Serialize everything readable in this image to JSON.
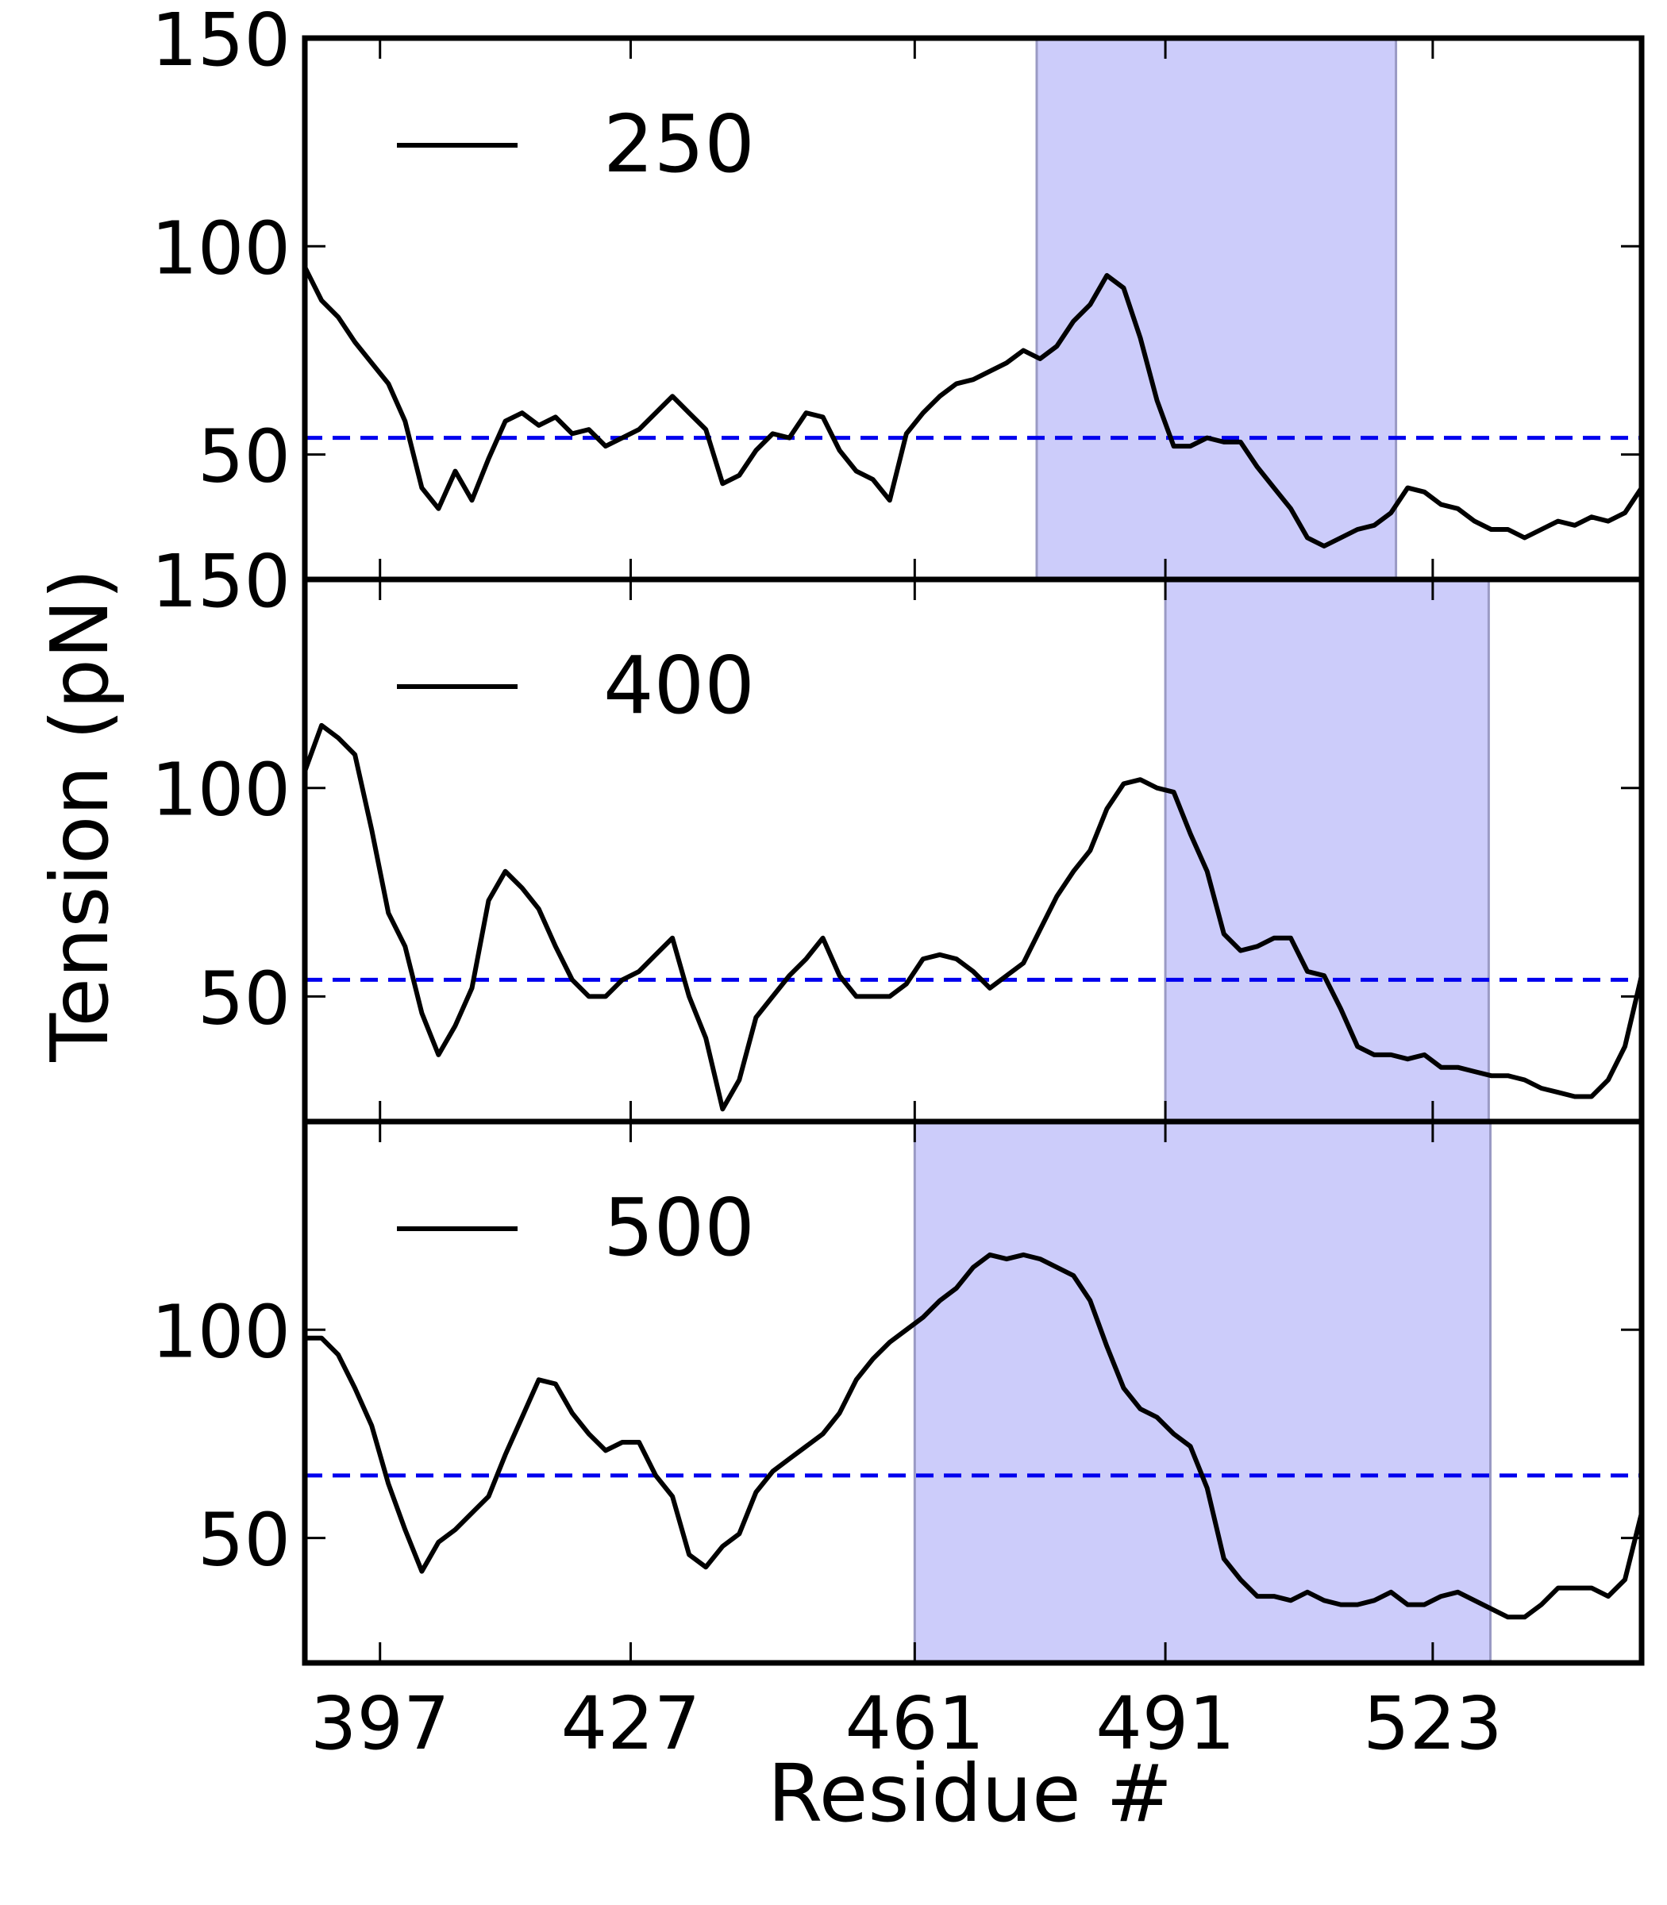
{
  "colors": {
    "line": "#000000",
    "threshold": "#0000ee",
    "shade_fill": "#ccccfa",
    "shade_edge": "#9a9ac4",
    "frame": "#000000"
  },
  "figure": {
    "ylabel": "Tension (pN)",
    "xlabel": "Residue #"
  },
  "chart_data": [
    {
      "type": "line",
      "legend_label": "250",
      "legend_placement": "top-left",
      "xlim": [
        388,
        548
      ],
      "ylim": [
        20,
        150
      ],
      "yticks": [
        50,
        100,
        150
      ],
      "xticks": [
        397,
        427,
        461,
        491,
        523
      ],
      "grid": false,
      "threshold": 54,
      "shaded_x": [
        475.6,
        518.6
      ],
      "series": [
        {
          "x": [
            388,
            390,
            392,
            394,
            396,
            398,
            400,
            402,
            404,
            406,
            408,
            410,
            412,
            414,
            416,
            418,
            420,
            422,
            424,
            426,
            428,
            430,
            432,
            434,
            436,
            438,
            440,
            442,
            444,
            446,
            448,
            450,
            452,
            454,
            456,
            458,
            460,
            462,
            464,
            466,
            468,
            470,
            472,
            474,
            476,
            478,
            480,
            482,
            484,
            486,
            488,
            490,
            492,
            494,
            496,
            498,
            500,
            502,
            504,
            506,
            508,
            510,
            512,
            514,
            516,
            518,
            520,
            522,
            524,
            526,
            528,
            530,
            532,
            534,
            536,
            538,
            540,
            542,
            544,
            546,
            548
          ],
          "y": [
            95,
            87,
            83,
            77,
            72,
            67,
            58,
            42,
            37,
            46,
            39,
            49,
            58,
            60,
            57,
            59,
            55,
            56,
            52,
            54,
            56,
            60,
            64,
            60,
            56,
            43,
            45,
            51,
            55,
            54,
            60,
            59,
            51,
            46,
            44,
            39,
            55,
            60,
            64,
            67,
            68,
            70,
            72,
            75,
            73,
            76,
            82,
            86,
            93,
            90,
            78,
            63,
            52,
            52,
            54,
            53,
            53,
            47,
            42,
            37,
            30,
            28,
            30,
            32,
            33,
            36,
            42,
            41,
            38,
            37,
            34,
            32,
            32,
            30,
            32,
            34,
            33,
            35,
            34,
            36,
            42
          ]
        }
      ]
    },
    {
      "type": "line",
      "legend_label": "400",
      "legend_placement": "top-left",
      "xlim": [
        388,
        548
      ],
      "ylim": [
        20,
        150
      ],
      "yticks": [
        50,
        100,
        150
      ],
      "xticks": [
        397,
        427,
        461,
        491,
        523
      ],
      "grid": false,
      "threshold": 54,
      "shaded_x": [
        491,
        529.7
      ],
      "series": [
        {
          "x": [
            388,
            390,
            392,
            394,
            396,
            398,
            400,
            402,
            404,
            406,
            408,
            410,
            412,
            414,
            416,
            418,
            420,
            422,
            424,
            426,
            428,
            430,
            432,
            434,
            436,
            438,
            440,
            442,
            444,
            446,
            448,
            450,
            452,
            454,
            456,
            458,
            460,
            462,
            464,
            466,
            468,
            470,
            472,
            474,
            476,
            478,
            480,
            482,
            484,
            486,
            488,
            490,
            492,
            494,
            496,
            498,
            500,
            502,
            504,
            506,
            508,
            510,
            512,
            514,
            516,
            518,
            520,
            522,
            524,
            526,
            528,
            530,
            532,
            534,
            536,
            538,
            540,
            542,
            544,
            546,
            548
          ],
          "y": [
            104,
            115,
            112,
            108,
            90,
            70,
            62,
            46,
            36,
            43,
            52,
            73,
            80,
            76,
            71,
            62,
            54,
            50,
            50,
            54,
            56,
            60,
            64,
            50,
            40,
            23,
            30,
            45,
            50,
            55,
            59,
            64,
            55,
            50,
            50,
            50,
            53,
            59,
            60,
            59,
            56,
            52,
            55,
            58,
            66,
            74,
            80,
            85,
            95,
            101,
            102,
            100,
            99,
            89,
            80,
            65,
            61,
            62,
            64,
            64,
            56,
            55,
            47,
            38,
            36,
            36,
            35,
            36,
            33,
            33,
            32,
            31,
            31,
            30,
            28,
            27,
            26,
            26,
            30,
            38,
            55
          ]
        }
      ]
    },
    {
      "type": "line",
      "legend_label": "500",
      "legend_placement": "top-left",
      "xlim": [
        388,
        548
      ],
      "ylim": [
        20,
        150
      ],
      "yticks": [
        50,
        100
      ],
      "xticks": [
        397,
        427,
        461,
        491,
        523
      ],
      "grid": false,
      "threshold": 65,
      "shaded_x": [
        461,
        529.9
      ],
      "series": [
        {
          "x": [
            388,
            390,
            392,
            394,
            396,
            398,
            400,
            402,
            404,
            406,
            408,
            410,
            412,
            414,
            416,
            418,
            420,
            422,
            424,
            426,
            428,
            430,
            432,
            434,
            436,
            438,
            440,
            442,
            444,
            446,
            448,
            450,
            452,
            454,
            456,
            458,
            460,
            462,
            464,
            466,
            468,
            470,
            472,
            474,
            476,
            478,
            480,
            482,
            484,
            486,
            488,
            490,
            492,
            494,
            496,
            498,
            500,
            502,
            504,
            506,
            508,
            510,
            512,
            514,
            516,
            518,
            520,
            522,
            524,
            526,
            528,
            530,
            532,
            534,
            536,
            538,
            540,
            542,
            544,
            546,
            548
          ],
          "y": [
            98,
            98,
            94,
            86,
            77,
            63,
            52,
            42,
            49,
            52,
            56,
            60,
            70,
            79,
            88,
            87,
            80,
            75,
            71,
            73,
            73,
            65,
            60,
            46,
            43,
            48,
            51,
            61,
            66,
            69,
            72,
            75,
            80,
            88,
            93,
            97,
            100,
            103,
            107,
            110,
            115,
            118,
            117,
            118,
            117,
            115,
            113,
            107,
            96,
            86,
            81,
            79,
            75,
            72,
            62,
            45,
            40,
            36,
            36,
            35,
            37,
            35,
            34,
            34,
            35,
            37,
            34,
            34,
            36,
            37,
            35,
            33,
            31,
            31,
            34,
            38,
            38,
            38,
            36,
            40,
            56
          ]
        }
      ]
    }
  ]
}
